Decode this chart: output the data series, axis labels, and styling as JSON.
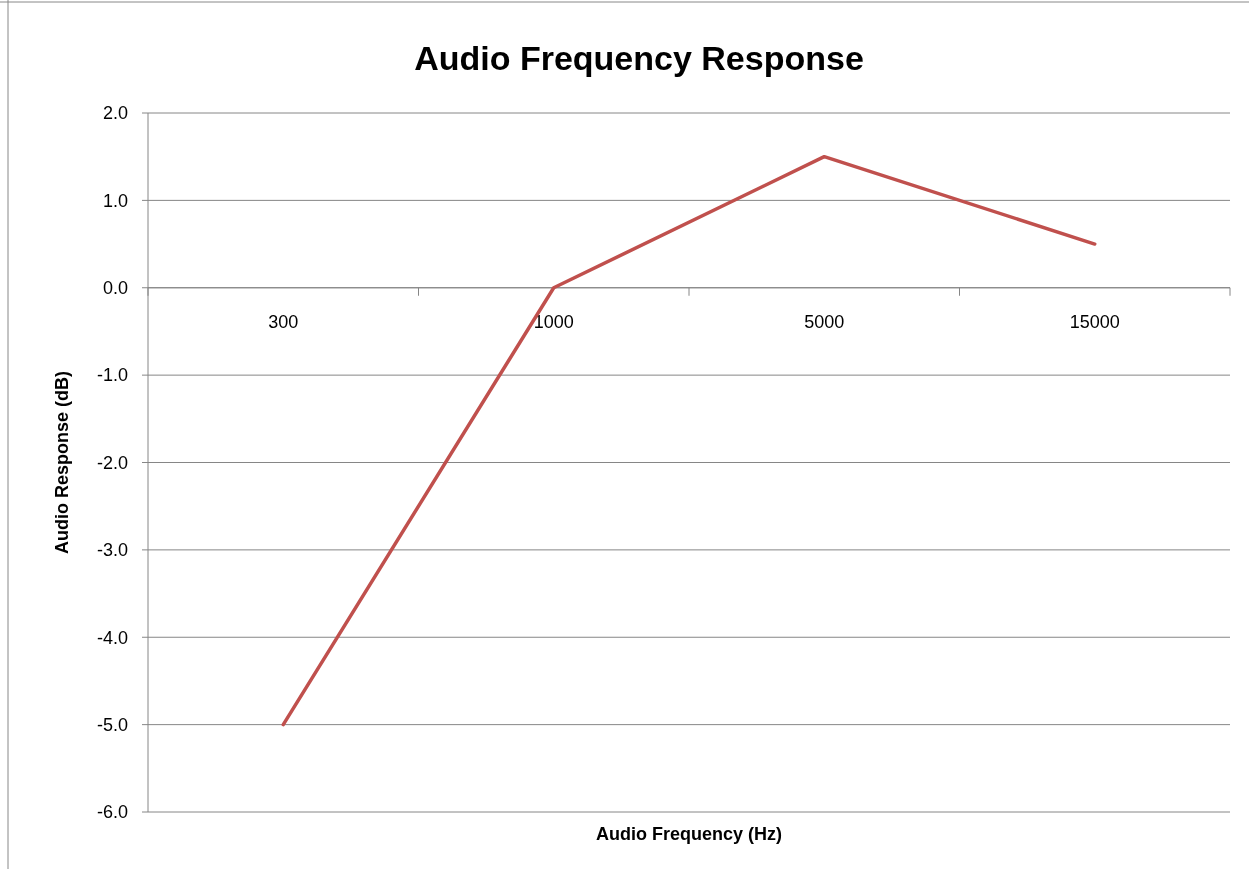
{
  "chart_data": {
    "type": "line",
    "title": "Audio Frequency Response",
    "xlabel": "Audio Frequency (Hz)",
    "ylabel": "Audio Response (dB)",
    "categories": [
      "300",
      "1000",
      "5000",
      "15000"
    ],
    "series": [
      {
        "color": "#c0504d",
        "values": [
          -5.0,
          0.0,
          1.5,
          0.5
        ]
      }
    ],
    "ylim": [
      -6,
      2
    ],
    "yticks": [
      {
        "value": -6,
        "label": "-6.0"
      },
      {
        "value": -5,
        "label": "-5.0"
      },
      {
        "value": -4,
        "label": "-4.0"
      },
      {
        "value": -3,
        "label": "-3.0"
      },
      {
        "value": -2,
        "label": "-2.0"
      },
      {
        "value": -1,
        "label": "-1.0"
      },
      {
        "value": 0,
        "label": "0.0"
      },
      {
        "value": 1,
        "label": "1.0"
      },
      {
        "value": 2,
        "label": "2.0"
      }
    ],
    "grid": "y",
    "marker": "none",
    "line_style": "solid"
  }
}
